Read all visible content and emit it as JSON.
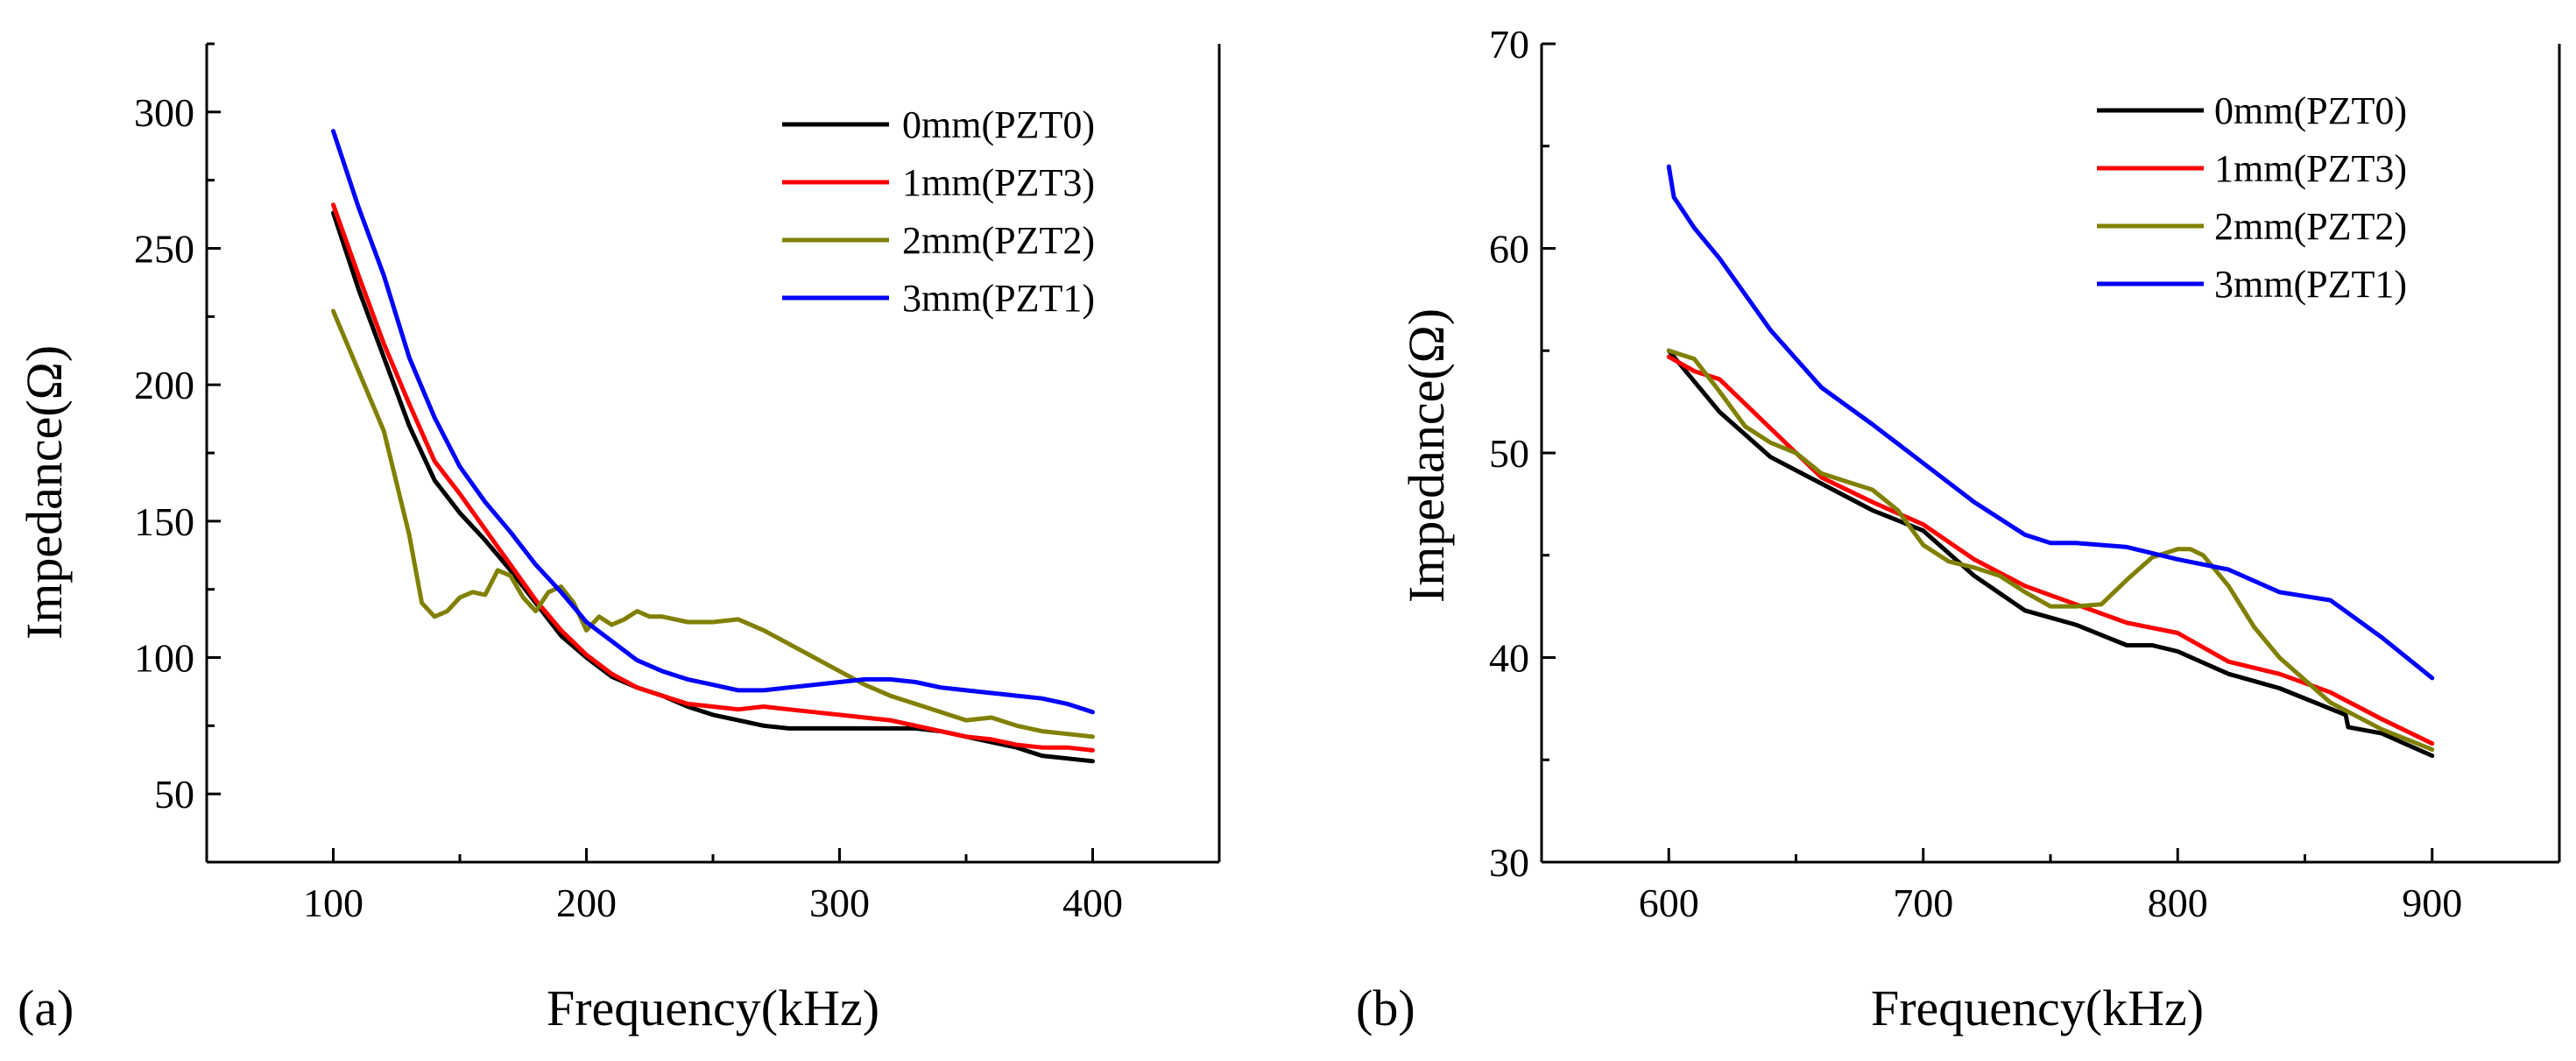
{
  "charts": [
    {
      "panel_label": "(a)",
      "chart_data": {
        "type": "line",
        "xlabel": "Frequency(kHz)",
        "ylabel": "Impedance(Ω)",
        "xlim": [
          50,
          450
        ],
        "ylim": [
          25,
          325
        ],
        "xticks": [
          100,
          200,
          300,
          400
        ],
        "yticks": [
          50,
          100,
          150,
          200,
          250,
          300
        ],
        "legend_position": "top-right",
        "series": [
          {
            "name": "0mm(PZT0)",
            "color": "#000000",
            "x": [
              100,
              110,
              120,
              130,
              140,
              150,
              160,
              170,
              180,
              190,
              200,
              210,
              220,
              230,
              240,
              250,
              260,
              270,
              280,
              290,
              300,
              310,
              320,
              330,
              340,
              350,
              360,
              370,
              380,
              390,
              400
            ],
            "y": [
              263,
              235,
              210,
              185,
              165,
              153,
              143,
              132,
              120,
              108,
              100,
              93,
              89,
              86,
              82,
              79,
              77,
              75,
              74,
              74,
              74,
              74,
              74,
              74,
              73,
              71,
              69,
              67,
              64,
              63,
              62
            ]
          },
          {
            "name": "1mm(PZT3)",
            "color": "#ff0000",
            "x": [
              100,
              110,
              120,
              130,
              140,
              150,
              160,
              170,
              180,
              190,
              200,
              210,
              220,
              230,
              240,
              250,
              260,
              270,
              280,
              290,
              300,
              310,
              320,
              330,
              340,
              350,
              360,
              370,
              380,
              390,
              400
            ],
            "y": [
              266,
              240,
              215,
              193,
              172,
              160,
              147,
              134,
              121,
              110,
              101,
              94,
              89,
              86,
              83,
              82,
              81,
              82,
              81,
              80,
              79,
              78,
              77,
              75,
              73,
              71,
              70,
              68,
              67,
              67,
              66
            ]
          },
          {
            "name": "2mm(PZT2)",
            "color": "#808000",
            "x": [
              100,
              110,
              120,
              130,
              135,
              140,
              145,
              150,
              155,
              160,
              165,
              170,
              175,
              180,
              185,
              190,
              195,
              200,
              205,
              210,
              215,
              220,
              225,
              230,
              240,
              250,
              260,
              270,
              280,
              290,
              300,
              310,
              320,
              330,
              340,
              350,
              360,
              370,
              380,
              390,
              400
            ],
            "y": [
              227,
              205,
              183,
              145,
              120,
              115,
              117,
              122,
              124,
              123,
              132,
              130,
              122,
              117,
              124,
              126,
              120,
              110,
              115,
              112,
              114,
              117,
              115,
              115,
              113,
              113,
              114,
              110,
              105,
              100,
              95,
              90,
              86,
              83,
              80,
              77,
              78,
              75,
              73,
              72,
              71
            ]
          },
          {
            "name": "3mm(PZT1)",
            "color": "#0000ff",
            "x": [
              100,
              110,
              120,
              130,
              140,
              150,
              160,
              170,
              180,
              190,
              200,
              210,
              220,
              230,
              240,
              250,
              260,
              270,
              280,
              290,
              300,
              310,
              320,
              330,
              340,
              350,
              360,
              370,
              380,
              390,
              400
            ],
            "y": [
              293,
              265,
              240,
              210,
              188,
              170,
              157,
              146,
              134,
              124,
              113,
              106,
              99,
              95,
              92,
              90,
              88,
              88,
              89,
              90,
              91,
              92,
              92,
              91,
              89,
              88,
              87,
              86,
              85,
              83,
              80
            ]
          }
        ]
      }
    },
    {
      "panel_label": "(b)",
      "chart_data": {
        "type": "line",
        "xlabel": "Frequency(kHz)",
        "ylabel": "Impedance(Ω)",
        "xlim": [
          550,
          950
        ],
        "ylim": [
          30,
          70
        ],
        "xticks": [
          600,
          700,
          800,
          900
        ],
        "yticks": [
          30,
          40,
          50,
          60,
          70
        ],
        "legend_position": "top-right",
        "series": [
          {
            "name": "0mm(PZT0)",
            "color": "#000000",
            "x": [
              600,
              620,
              640,
              660,
              680,
              700,
              720,
              740,
              760,
              780,
              790,
              800,
              820,
              840,
              860,
              866,
              867,
              880,
              900
            ],
            "y": [
              55,
              52,
              49.8,
              48.5,
              47.2,
              46.2,
              44,
              42.3,
              41.6,
              40.6,
              40.6,
              40.3,
              39.2,
              38.5,
              37.5,
              37.2,
              36.6,
              36.3,
              35.2
            ]
          },
          {
            "name": "1mm(PZT3)",
            "color": "#ff0000",
            "x": [
              600,
              610,
              620,
              640,
              660,
              680,
              700,
              720,
              740,
              760,
              780,
              800,
              820,
              840,
              860,
              880,
              900
            ],
            "y": [
              54.7,
              54,
              53.6,
              51.2,
              48.8,
              47.6,
              46.5,
              44.8,
              43.5,
              42.6,
              41.7,
              41.2,
              39.8,
              39.2,
              38.3,
              37,
              35.8
            ]
          },
          {
            "name": "2mm(PZT2)",
            "color": "#808000",
            "x": [
              600,
              610,
              620,
              630,
              640,
              650,
              660,
              670,
              680,
              690,
              700,
              710,
              720,
              730,
              740,
              750,
              760,
              770,
              780,
              790,
              800,
              805,
              810,
              820,
              830,
              840,
              860,
              880,
              900
            ],
            "y": [
              55,
              54.6,
              53,
              51.3,
              50.5,
              50,
              49,
              48.6,
              48.2,
              47.2,
              45.5,
              44.7,
              44.4,
              44,
              43.2,
              42.5,
              42.5,
              42.6,
              43.8,
              44.9,
              45.3,
              45.3,
              45,
              43.5,
              41.5,
              40,
              37.8,
              36.5,
              35.5
            ]
          },
          {
            "name": "3mm(PZT1)",
            "color": "#0000ff",
            "x": [
              600,
              602,
              610,
              620,
              640,
              660,
              680,
              700,
              720,
              740,
              750,
              760,
              780,
              800,
              820,
              840,
              860,
              880,
              900
            ],
            "y": [
              64,
              62.5,
              61,
              59.5,
              56,
              53.2,
              51.4,
              49.5,
              47.6,
              46,
              45.6,
              45.6,
              45.4,
              44.8,
              44.3,
              43.2,
              42.8,
              41,
              39
            ]
          }
        ]
      }
    }
  ]
}
